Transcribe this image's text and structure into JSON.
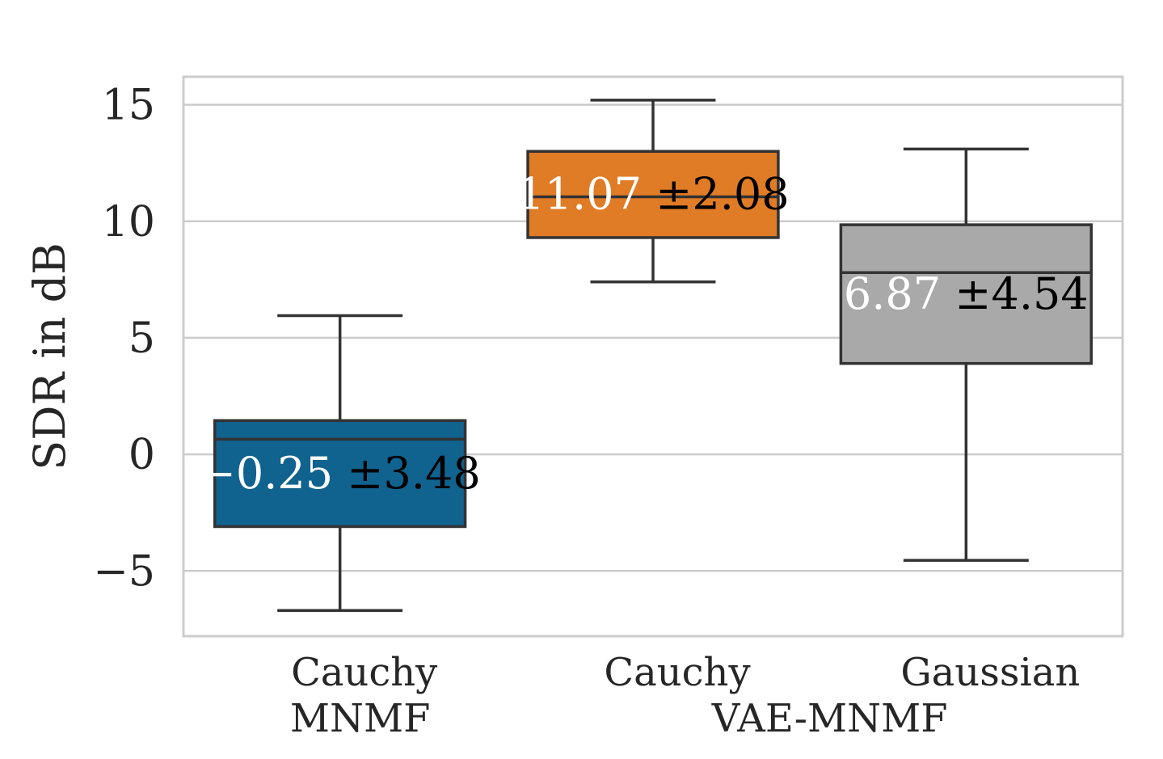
{
  "chart_data": {
    "type": "box",
    "ylabel": "SDR in dB",
    "ylim": [
      -7.8,
      16.2
    ],
    "yticks": [
      -5,
      0,
      5,
      10,
      15
    ],
    "ytick_labels": [
      "−5",
      "0",
      "5",
      "10",
      "15"
    ],
    "grid": "horizontal",
    "categories": [
      "Cauchy",
      "Cauchy",
      "Gaussian"
    ],
    "groups": [
      {
        "label": "MNMF",
        "members": [
          0
        ]
      },
      {
        "label": "VAE-MNMF",
        "members": [
          1,
          2
        ]
      }
    ],
    "boxes": [
      {
        "category": "Cauchy",
        "group": "MNMF",
        "whisker_low": -6.7,
        "q1": -3.1,
        "median": 0.65,
        "q3": 1.45,
        "whisker_high": 5.95,
        "mean_label": "−0.25",
        "std_label": "±3.48",
        "color": "#10628f"
      },
      {
        "category": "Cauchy",
        "group": "VAE-MNMF",
        "whisker_low": 7.4,
        "q1": 9.3,
        "median": 11.05,
        "q3": 13.0,
        "whisker_high": 15.2,
        "mean_label": "11.07",
        "std_label": "±2.08",
        "color": "#e07b26"
      },
      {
        "category": "Gaussian",
        "group": "VAE-MNMF",
        "whisker_low": -4.55,
        "q1": 3.9,
        "median": 7.8,
        "q3": 9.85,
        "whisker_high": 13.1,
        "mean_label": "6.87",
        "std_label": "±4.54",
        "color": "#a9a9a9"
      }
    ],
    "colors": {
      "grid": "#cccccc",
      "frame": "#cccccc",
      "line": "#333333",
      "mean_text": "#ffffff",
      "std_text": "#000000"
    }
  }
}
